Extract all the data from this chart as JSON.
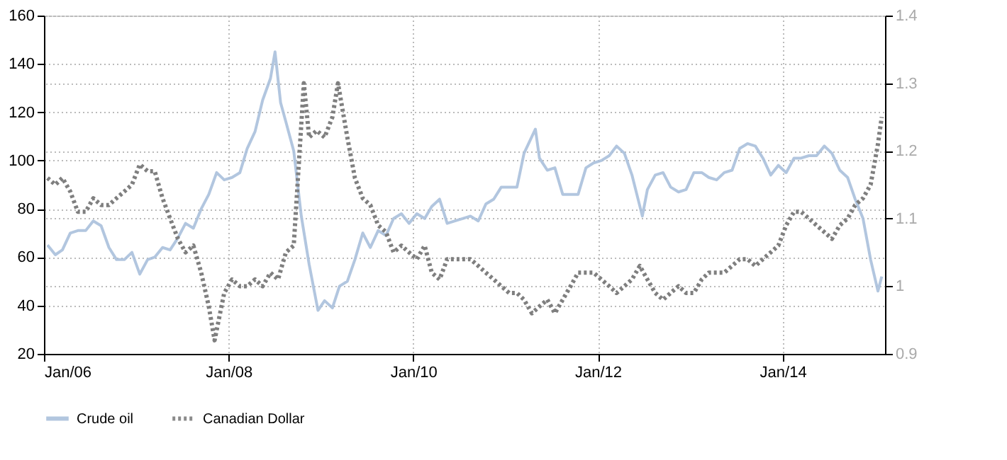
{
  "chart_data": {
    "type": "line",
    "xlim": [
      "2006-01-01",
      "2015-02-10"
    ],
    "xticks": [
      {
        "value": "2006-01-01",
        "label": "Jan/06"
      },
      {
        "value": "2008-01-01",
        "label": "Jan/08"
      },
      {
        "value": "2010-01-01",
        "label": "Jan/10"
      },
      {
        "value": "2012-01-01",
        "label": "Jan/12"
      },
      {
        "value": "2014-01-01",
        "label": "Jan/14"
      }
    ],
    "ylim": [
      20,
      160
    ],
    "yticks": [
      20,
      40,
      60,
      80,
      100,
      120,
      140,
      160
    ],
    "y2lim": [
      0.9,
      1.4
    ],
    "y2ticks": [
      0.9,
      1,
      1.1,
      1.2,
      1.3,
      1.4
    ],
    "grid": true,
    "legend": "bottom left",
    "series": [
      {
        "name": "Crude oil",
        "color": "#aac0dc",
        "line_style": "solid",
        "x": [
          "2006-01-15",
          "2006-02-15",
          "2006-03-15",
          "2006-04-15",
          "2006-05-15",
          "2006-06-15",
          "2006-07-15",
          "2006-08-15",
          "2006-09-15",
          "2006-10-15",
          "2006-11-15",
          "2006-12-15",
          "2007-01-15",
          "2007-02-15",
          "2007-03-15",
          "2007-04-15",
          "2007-05-15",
          "2007-06-15",
          "2007-07-15",
          "2007-08-15",
          "2007-09-15",
          "2007-10-15",
          "2007-11-15",
          "2007-12-15",
          "2008-01-15",
          "2008-02-15",
          "2008-03-15",
          "2008-04-15",
          "2008-05-15",
          "2008-06-15",
          "2008-07-03",
          "2008-07-25",
          "2008-08-15",
          "2008-09-15",
          "2008-10-15",
          "2008-11-15",
          "2008-12-20",
          "2009-01-15",
          "2009-02-15",
          "2009-03-15",
          "2009-04-15",
          "2009-05-15",
          "2009-06-15",
          "2009-07-15",
          "2009-08-15",
          "2009-09-15",
          "2009-10-15",
          "2009-11-15",
          "2009-12-15",
          "2010-01-15",
          "2010-02-15",
          "2010-03-15",
          "2010-04-15",
          "2010-05-15",
          "2010-06-15",
          "2010-07-15",
          "2010-08-15",
          "2010-09-15",
          "2010-10-15",
          "2010-11-15",
          "2010-12-15",
          "2011-01-15",
          "2011-02-15",
          "2011-03-15",
          "2011-04-29",
          "2011-05-15",
          "2011-06-15",
          "2011-07-15",
          "2011-08-15",
          "2011-09-15",
          "2011-10-15",
          "2011-11-15",
          "2011-12-15",
          "2012-01-15",
          "2012-02-15",
          "2012-03-15",
          "2012-04-15",
          "2012-05-15",
          "2012-06-25",
          "2012-07-15",
          "2012-08-15",
          "2012-09-15",
          "2012-10-15",
          "2012-11-15",
          "2012-12-15",
          "2013-01-15",
          "2013-02-15",
          "2013-03-15",
          "2013-04-15",
          "2013-05-15",
          "2013-06-15",
          "2013-07-15",
          "2013-08-15",
          "2013-09-15",
          "2013-10-15",
          "2013-11-15",
          "2013-12-15",
          "2014-01-15",
          "2014-02-15",
          "2014-03-15",
          "2014-04-15",
          "2014-05-15",
          "2014-06-15",
          "2014-07-15",
          "2014-08-15",
          "2014-09-15",
          "2014-10-15",
          "2014-11-15",
          "2014-12-15",
          "2015-01-13",
          "2015-01-28"
        ],
        "values": [
          65,
          61,
          63,
          70,
          71,
          71,
          75,
          73,
          64,
          59,
          59,
          62,
          53,
          59,
          60,
          64,
          63,
          68,
          74,
          72,
          80,
          86,
          95,
          92,
          93,
          95,
          105,
          112,
          125,
          134,
          145,
          124,
          116,
          104,
          77,
          57,
          38,
          42,
          39,
          48,
          50,
          59,
          70,
          64,
          71,
          69,
          76,
          78,
          74,
          78,
          76,
          81,
          84,
          74,
          75,
          76,
          77,
          75,
          82,
          84,
          89,
          89,
          89,
          103,
          113,
          101,
          96,
          97,
          86,
          86,
          86,
          97,
          99,
          100,
          102,
          106,
          103,
          94,
          77,
          88,
          94,
          95,
          89,
          87,
          88,
          95,
          95,
          93,
          92,
          95,
          96,
          105,
          107,
          106,
          101,
          94,
          98,
          95,
          101,
          101,
          102,
          102,
          106,
          103,
          96,
          93,
          84,
          76,
          59,
          46,
          52
        ]
      },
      {
        "name": "Canadian Dollar",
        "color": "#7f7f7f",
        "line_style": "dotted",
        "axis": "y2",
        "x": [
          "2006-01-15",
          "2006-02-15",
          "2006-03-15",
          "2006-04-15",
          "2006-05-15",
          "2006-06-15",
          "2006-07-15",
          "2006-08-15",
          "2006-09-15",
          "2006-10-15",
          "2006-11-15",
          "2006-12-15",
          "2007-01-15",
          "2007-02-15",
          "2007-03-15",
          "2007-04-15",
          "2007-05-15",
          "2007-06-15",
          "2007-07-15",
          "2007-08-15",
          "2007-09-15",
          "2007-10-15",
          "2007-11-07",
          "2007-12-15",
          "2008-01-15",
          "2008-02-15",
          "2008-03-15",
          "2008-04-15",
          "2008-05-15",
          "2008-06-15",
          "2008-07-15",
          "2008-08-15",
          "2008-09-15",
          "2008-10-25",
          "2008-11-15",
          "2008-12-15",
          "2009-01-15",
          "2009-02-15",
          "2009-03-09",
          "2009-04-15",
          "2009-05-15",
          "2009-06-15",
          "2009-07-15",
          "2009-08-15",
          "2009-09-15",
          "2009-10-15",
          "2009-11-15",
          "2009-12-15",
          "2010-01-15",
          "2010-02-15",
          "2010-03-15",
          "2010-04-15",
          "2010-05-15",
          "2010-06-15",
          "2010-07-15",
          "2010-08-15",
          "2010-09-15",
          "2010-10-15",
          "2010-11-15",
          "2010-12-15",
          "2011-01-15",
          "2011-02-15",
          "2011-03-15",
          "2011-04-15",
          "2011-05-15",
          "2011-06-15",
          "2011-07-15",
          "2011-08-15",
          "2011-09-15",
          "2011-10-15",
          "2011-11-15",
          "2011-12-15",
          "2012-01-15",
          "2012-02-15",
          "2012-03-15",
          "2012-04-15",
          "2012-05-15",
          "2012-06-15",
          "2012-07-15",
          "2012-08-15",
          "2012-09-15",
          "2012-10-15",
          "2012-11-15",
          "2012-12-15",
          "2013-01-15",
          "2013-02-15",
          "2013-03-15",
          "2013-04-15",
          "2013-05-15",
          "2013-06-15",
          "2013-07-15",
          "2013-08-15",
          "2013-09-15",
          "2013-10-15",
          "2013-11-15",
          "2013-12-15",
          "2014-01-15",
          "2014-02-15",
          "2014-03-15",
          "2014-04-15",
          "2014-05-15",
          "2014-06-15",
          "2014-07-15",
          "2014-08-15",
          "2014-09-15",
          "2014-10-15",
          "2014-11-15",
          "2014-12-15",
          "2015-01-13",
          "2015-01-28"
        ],
        "values": [
          1.16,
          1.15,
          1.16,
          1.14,
          1.11,
          1.11,
          1.13,
          1.12,
          1.12,
          1.13,
          1.14,
          1.15,
          1.18,
          1.17,
          1.17,
          1.13,
          1.1,
          1.07,
          1.05,
          1.06,
          1.02,
          0.97,
          0.92,
          0.99,
          1.01,
          1.0,
          1.0,
          1.01,
          1.0,
          1.02,
          1.01,
          1.05,
          1.06,
          1.3,
          1.22,
          1.23,
          1.22,
          1.25,
          1.3,
          1.22,
          1.16,
          1.13,
          1.12,
          1.09,
          1.08,
          1.05,
          1.06,
          1.05,
          1.04,
          1.06,
          1.02,
          1.01,
          1.04,
          1.04,
          1.04,
          1.04,
          1.03,
          1.02,
          1.01,
          1.0,
          0.99,
          0.99,
          0.98,
          0.96,
          0.97,
          0.98,
          0.96,
          0.98,
          1.0,
          1.02,
          1.02,
          1.02,
          1.01,
          1.0,
          0.99,
          1.0,
          1.01,
          1.03,
          1.01,
          0.99,
          0.98,
          0.99,
          1.0,
          0.99,
          0.99,
          1.01,
          1.02,
          1.02,
          1.02,
          1.03,
          1.04,
          1.04,
          1.03,
          1.04,
          1.05,
          1.06,
          1.09,
          1.11,
          1.11,
          1.1,
          1.09,
          1.08,
          1.07,
          1.09,
          1.1,
          1.12,
          1.13,
          1.15,
          1.21,
          1.25
        ]
      }
    ]
  }
}
